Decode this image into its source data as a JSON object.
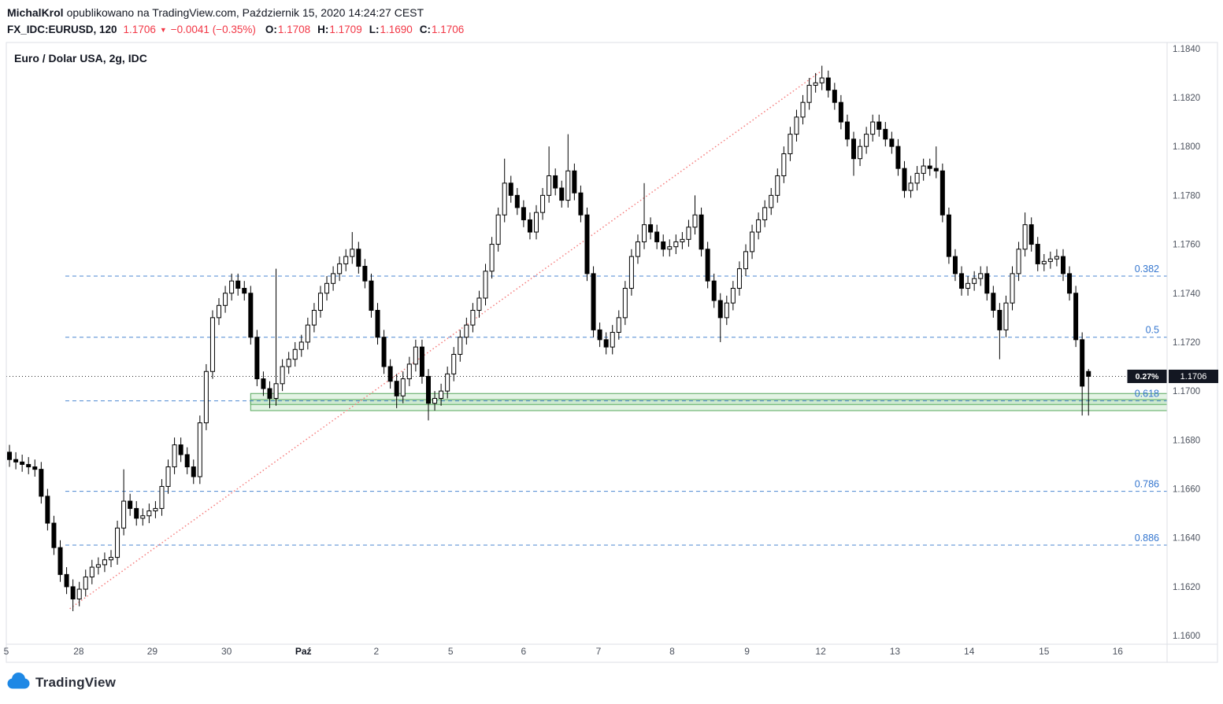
{
  "header": {
    "author": "MichalKrol",
    "published_text": "opublikowano na TradingView.com, Październik 15, 2020 14:24:27 CEST",
    "symbol": "FX_IDC:EURUSD, 120",
    "last_price": "1.1706",
    "direction_icon": "▼",
    "change": "−0.0041 (−0.35%)",
    "ohlc": {
      "o_label": "O:",
      "o": "1.1708",
      "h_label": "H:",
      "h": "1.1709",
      "l_label": "L:",
      "l": "1.1690",
      "c_label": "C:",
      "c": "1.1706"
    }
  },
  "chart": {
    "title": "Euro / Dolar USA, 2g, IDC"
  },
  "footer": {
    "brand": "TradingView"
  },
  "chart_data": {
    "type": "candlestick",
    "title": "Euro / Dolar USA, 2g, IDC",
    "symbol": "EURUSD",
    "interval": "2h",
    "ylim": [
      1.15965,
      1.18425
    ],
    "y_ticks": [
      "1.1600",
      "1.1620",
      "1.1640",
      "1.1660",
      "1.1680",
      "1.1700",
      "1.1720",
      "1.1740",
      "1.1760",
      "1.1780",
      "1.1800",
      "1.1820",
      "1.1840"
    ],
    "x_ticks": [
      {
        "label": "5",
        "idx": 0,
        "bold": false
      },
      {
        "label": "28",
        "idx": 11.4,
        "bold": false
      },
      {
        "label": "29",
        "idx": 23.0,
        "bold": false
      },
      {
        "label": "30",
        "idx": 34.7,
        "bold": false
      },
      {
        "label": "Paź",
        "idx": 46.8,
        "bold": true
      },
      {
        "label": "2",
        "idx": 58.3,
        "bold": false
      },
      {
        "label": "5",
        "idx": 70.0,
        "bold": false
      },
      {
        "label": "6",
        "idx": 81.5,
        "bold": false
      },
      {
        "label": "7",
        "idx": 93.3,
        "bold": false
      },
      {
        "label": "8",
        "idx": 104.9,
        "bold": false
      },
      {
        "label": "9",
        "idx": 116.7,
        "bold": false
      },
      {
        "label": "12",
        "idx": 128.3,
        "bold": false
      },
      {
        "label": "13",
        "idx": 140.0,
        "bold": false
      },
      {
        "label": "14",
        "idx": 151.7,
        "bold": false
      },
      {
        "label": "15",
        "idx": 163.5,
        "bold": false
      },
      {
        "label": "16",
        "idx": 175.1,
        "bold": false
      }
    ],
    "candle_style": {
      "up_fill": "#ffffff",
      "down_fill": "#000000",
      "border": "#000000",
      "wick": "#000000"
    },
    "fib_style": {
      "start_idx": 9.3,
      "line_color": "#4a86d1",
      "label_color": "#3476cf",
      "dash": "5,4"
    },
    "fib_levels": [
      {
        "label": "0.382",
        "price": 1.1747
      },
      {
        "label": "0.5",
        "price": 1.1722
      },
      {
        "label": "0.618",
        "price": 1.1696
      },
      {
        "label": "0.786",
        "price": 1.1659
      },
      {
        "label": "0.886",
        "price": 1.1637
      }
    ],
    "zone_style": {
      "fill": "rgba(129,199,132,0.22)",
      "stroke": "#56a85c"
    },
    "zones": [
      {
        "start_idx": 38.5,
        "price_top": 1.1699,
        "price_bottom": 1.16945
      },
      {
        "start_idx": 38.5,
        "price_top": 1.16965,
        "price_bottom": 1.1692
      }
    ],
    "trendline": {
      "x1_idx": 9.5,
      "price1": 1.1611,
      "x2_idx": 128,
      "price2": 1.1831,
      "color": "#f57d7d",
      "dash": "1.5,3"
    },
    "price_line": {
      "price": 1.1706,
      "percent_label": "0.27%",
      "price_label": "1.1706",
      "line_color": "#2a2a2a",
      "badge_bg": "#131722",
      "badge_fg": "#ffffff"
    },
    "candles": [
      [
        1.1675,
        1.1678,
        1.1669,
        1.1672
      ],
      [
        1.1672,
        1.1675,
        1.1668,
        1.1671
      ],
      [
        1.1671,
        1.1674,
        1.1667,
        1.167
      ],
      [
        1.167,
        1.1673,
        1.1666,
        1.1669
      ],
      [
        1.1669,
        1.1672,
        1.1665,
        1.1668
      ],
      [
        1.1668,
        1.1671,
        1.1654,
        1.1657
      ],
      [
        1.1657,
        1.166,
        1.1643,
        1.1646
      ],
      [
        1.1646,
        1.1649,
        1.1633,
        1.1636
      ],
      [
        1.1636,
        1.1639,
        1.1622,
        1.1625
      ],
      [
        1.1625,
        1.1628,
        1.1617,
        1.162
      ],
      [
        1.162,
        1.1623,
        1.161,
        1.1615
      ],
      [
        1.1615,
        1.1622,
        1.1612,
        1.1619
      ],
      [
        1.1619,
        1.1627,
        1.1616,
        1.1624
      ],
      [
        1.1624,
        1.1631,
        1.1621,
        1.1628
      ],
      [
        1.1628,
        1.1632,
        1.1625,
        1.1629
      ],
      [
        1.1629,
        1.1634,
        1.1626,
        1.1631
      ],
      [
        1.1631,
        1.1635,
        1.1628,
        1.1632
      ],
      [
        1.1632,
        1.1647,
        1.1629,
        1.1644
      ],
      [
        1.1644,
        1.1668,
        1.1641,
        1.1655
      ],
      [
        1.1655,
        1.1658,
        1.1649,
        1.1652
      ],
      [
        1.1652,
        1.1655,
        1.1645,
        1.1648
      ],
      [
        1.1648,
        1.1652,
        1.1645,
        1.1649
      ],
      [
        1.1649,
        1.1654,
        1.1646,
        1.1651
      ],
      [
        1.1651,
        1.1655,
        1.1648,
        1.1652
      ],
      [
        1.1652,
        1.1664,
        1.1649,
        1.1661
      ],
      [
        1.1661,
        1.1672,
        1.1658,
        1.1669
      ],
      [
        1.1669,
        1.1681,
        1.1666,
        1.1678
      ],
      [
        1.1678,
        1.1681,
        1.1671,
        1.1674
      ],
      [
        1.1674,
        1.1677,
        1.1666,
        1.1669
      ],
      [
        1.1669,
        1.1672,
        1.1662,
        1.1665
      ],
      [
        1.1665,
        1.169,
        1.1662,
        1.1687
      ],
      [
        1.1687,
        1.1711,
        1.1684,
        1.1708
      ],
      [
        1.1708,
        1.1733,
        1.1705,
        1.173
      ],
      [
        1.173,
        1.1738,
        1.1727,
        1.1735
      ],
      [
        1.1735,
        1.1743,
        1.1732,
        1.174
      ],
      [
        1.174,
        1.1748,
        1.1737,
        1.1745
      ],
      [
        1.1745,
        1.1748,
        1.1739,
        1.1742
      ],
      [
        1.1742,
        1.1745,
        1.1737,
        1.174
      ],
      [
        1.174,
        1.1743,
        1.1719,
        1.1722
      ],
      [
        1.1722,
        1.1725,
        1.1702,
        1.1705
      ],
      [
        1.1705,
        1.1708,
        1.1698,
        1.1701
      ],
      [
        1.1701,
        1.1704,
        1.1693,
        1.1697
      ],
      [
        1.1697,
        1.175,
        1.1694,
        1.1703
      ],
      [
        1.1703,
        1.1713,
        1.17,
        1.171
      ],
      [
        1.171,
        1.1716,
        1.1707,
        1.1713
      ],
      [
        1.1713,
        1.172,
        1.171,
        1.1717
      ],
      [
        1.1717,
        1.1723,
        1.1714,
        1.172
      ],
      [
        1.172,
        1.173,
        1.1717,
        1.1727
      ],
      [
        1.1727,
        1.1736,
        1.1724,
        1.1733
      ],
      [
        1.1733,
        1.1743,
        1.173,
        1.174
      ],
      [
        1.174,
        1.1747,
        1.1737,
        1.1744
      ],
      [
        1.1744,
        1.1751,
        1.1741,
        1.1748
      ],
      [
        1.1748,
        1.1755,
        1.1745,
        1.1752
      ],
      [
        1.1752,
        1.1758,
        1.1749,
        1.1755
      ],
      [
        1.1755,
        1.1765,
        1.1752,
        1.1758
      ],
      [
        1.1758,
        1.1761,
        1.1748,
        1.1751
      ],
      [
        1.1751,
        1.1754,
        1.1742,
        1.1745
      ],
      [
        1.1745,
        1.1748,
        1.173,
        1.1733
      ],
      [
        1.1733,
        1.1736,
        1.1719,
        1.1722
      ],
      [
        1.1722,
        1.1725,
        1.1707,
        1.171
      ],
      [
        1.171,
        1.1713,
        1.1701,
        1.1704
      ],
      [
        1.1704,
        1.1707,
        1.1693,
        1.1698
      ],
      [
        1.1698,
        1.1708,
        1.1695,
        1.1705
      ],
      [
        1.1705,
        1.1714,
        1.1702,
        1.1711
      ],
      [
        1.1711,
        1.1721,
        1.1708,
        1.1718
      ],
      [
        1.1718,
        1.1721,
        1.1703,
        1.1706
      ],
      [
        1.1706,
        1.1709,
        1.1688,
        1.1695
      ],
      [
        1.1695,
        1.17,
        1.1692,
        1.1697
      ],
      [
        1.1697,
        1.1703,
        1.1694,
        1.17
      ],
      [
        1.17,
        1.171,
        1.1697,
        1.1707
      ],
      [
        1.1707,
        1.1718,
        1.1704,
        1.1715
      ],
      [
        1.1715,
        1.1725,
        1.1712,
        1.1722
      ],
      [
        1.1722,
        1.173,
        1.1719,
        1.1727
      ],
      [
        1.1727,
        1.1736,
        1.1724,
        1.1733
      ],
      [
        1.1733,
        1.1741,
        1.173,
        1.1738
      ],
      [
        1.1738,
        1.1752,
        1.1735,
        1.1749
      ],
      [
        1.1749,
        1.1763,
        1.1746,
        1.176
      ],
      [
        1.176,
        1.1775,
        1.1757,
        1.1772
      ],
      [
        1.1772,
        1.1795,
        1.1769,
        1.1785
      ],
      [
        1.1785,
        1.1788,
        1.1777,
        1.178
      ],
      [
        1.178,
        1.1783,
        1.1772,
        1.1775
      ],
      [
        1.1775,
        1.1778,
        1.1767,
        1.177
      ],
      [
        1.177,
        1.1773,
        1.1762,
        1.1765
      ],
      [
        1.1765,
        1.1776,
        1.1762,
        1.1773
      ],
      [
        1.1773,
        1.1783,
        1.177,
        1.178
      ],
      [
        1.178,
        1.18,
        1.1777,
        1.1788
      ],
      [
        1.1788,
        1.1791,
        1.178,
        1.1783
      ],
      [
        1.1783,
        1.1786,
        1.1775,
        1.1778
      ],
      [
        1.1778,
        1.1805,
        1.1775,
        1.179
      ],
      [
        1.179,
        1.1793,
        1.1778,
        1.1781
      ],
      [
        1.1781,
        1.1784,
        1.1769,
        1.1772
      ],
      [
        1.1772,
        1.1775,
        1.1745,
        1.1748
      ],
      [
        1.1748,
        1.1751,
        1.1722,
        1.1725
      ],
      [
        1.1725,
        1.1728,
        1.1718,
        1.1721
      ],
      [
        1.1721,
        1.1724,
        1.1715,
        1.1718
      ],
      [
        1.1718,
        1.1727,
        1.1715,
        1.1724
      ],
      [
        1.1724,
        1.1733,
        1.1721,
        1.173
      ],
      [
        1.173,
        1.1745,
        1.1727,
        1.1742
      ],
      [
        1.1742,
        1.1758,
        1.1739,
        1.1755
      ],
      [
        1.1755,
        1.1764,
        1.1752,
        1.1761
      ],
      [
        1.1761,
        1.1785,
        1.1758,
        1.1768
      ],
      [
        1.1768,
        1.1771,
        1.1762,
        1.1765
      ],
      [
        1.1765,
        1.1768,
        1.1758,
        1.1761
      ],
      [
        1.1761,
        1.1764,
        1.1755,
        1.1758
      ],
      [
        1.1758,
        1.1762,
        1.1755,
        1.1759
      ],
      [
        1.1759,
        1.1764,
        1.1756,
        1.1761
      ],
      [
        1.1761,
        1.1765,
        1.1758,
        1.1762
      ],
      [
        1.1762,
        1.177,
        1.1759,
        1.1767
      ],
      [
        1.1767,
        1.178,
        1.1764,
        1.1772
      ],
      [
        1.1772,
        1.1775,
        1.1755,
        1.1758
      ],
      [
        1.1758,
        1.1761,
        1.1742,
        1.1745
      ],
      [
        1.1745,
        1.1748,
        1.1734,
        1.1737
      ],
      [
        1.1737,
        1.174,
        1.172,
        1.173
      ],
      [
        1.173,
        1.1739,
        1.1727,
        1.1736
      ],
      [
        1.1736,
        1.1745,
        1.1733,
        1.1742
      ],
      [
        1.1742,
        1.1753,
        1.1739,
        1.175
      ],
      [
        1.175,
        1.176,
        1.1747,
        1.1757
      ],
      [
        1.1757,
        1.1768,
        1.1754,
        1.1765
      ],
      [
        1.1765,
        1.1773,
        1.1762,
        1.177
      ],
      [
        1.177,
        1.1778,
        1.1767,
        1.1775
      ],
      [
        1.1775,
        1.1783,
        1.1772,
        1.178
      ],
      [
        1.178,
        1.1791,
        1.1777,
        1.1788
      ],
      [
        1.1788,
        1.18,
        1.1785,
        1.1797
      ],
      [
        1.1797,
        1.1808,
        1.1794,
        1.1805
      ],
      [
        1.1805,
        1.1815,
        1.1802,
        1.1812
      ],
      [
        1.1812,
        1.1821,
        1.1809,
        1.1818
      ],
      [
        1.1818,
        1.1828,
        1.1815,
        1.1825
      ],
      [
        1.1825,
        1.183,
        1.1822,
        1.1826
      ],
      [
        1.1826,
        1.1833,
        1.1823,
        1.1828
      ],
      [
        1.1828,
        1.1831,
        1.182,
        1.1823
      ],
      [
        1.1823,
        1.1826,
        1.1815,
        1.1818
      ],
      [
        1.1818,
        1.1821,
        1.1807,
        1.181
      ],
      [
        1.181,
        1.1813,
        1.18,
        1.1803
      ],
      [
        1.1803,
        1.1806,
        1.1788,
        1.1795
      ],
      [
        1.1795,
        1.1803,
        1.1792,
        1.18
      ],
      [
        1.18,
        1.1808,
        1.1797,
        1.1805
      ],
      [
        1.1805,
        1.1813,
        1.1802,
        1.181
      ],
      [
        1.181,
        1.1813,
        1.1804,
        1.1807
      ],
      [
        1.1807,
        1.181,
        1.18,
        1.1803
      ],
      [
        1.1803,
        1.1806,
        1.1797,
        1.18
      ],
      [
        1.18,
        1.1803,
        1.1788,
        1.1791
      ],
      [
        1.1791,
        1.1794,
        1.1779,
        1.1782
      ],
      [
        1.1782,
        1.1788,
        1.1779,
        1.1785
      ],
      [
        1.1785,
        1.1792,
        1.1782,
        1.1789
      ],
      [
        1.1789,
        1.1795,
        1.1786,
        1.1792
      ],
      [
        1.1792,
        1.1795,
        1.1788,
        1.1791
      ],
      [
        1.1791,
        1.18,
        1.1787,
        1.179
      ],
      [
        1.179,
        1.1793,
        1.1769,
        1.1772
      ],
      [
        1.1772,
        1.1775,
        1.1752,
        1.1755
      ],
      [
        1.1755,
        1.1758,
        1.1745,
        1.1748
      ],
      [
        1.1748,
        1.1751,
        1.1739,
        1.1742
      ],
      [
        1.1742,
        1.1747,
        1.1739,
        1.1744
      ],
      [
        1.1744,
        1.1749,
        1.1741,
        1.1746
      ],
      [
        1.1746,
        1.1751,
        1.1743,
        1.1748
      ],
      [
        1.1748,
        1.1751,
        1.1737,
        1.174
      ],
      [
        1.174,
        1.1743,
        1.173,
        1.1733
      ],
      [
        1.1733,
        1.1736,
        1.1713,
        1.1725
      ],
      [
        1.1725,
        1.1739,
        1.1722,
        1.1736
      ],
      [
        1.1736,
        1.1751,
        1.1733,
        1.1748
      ],
      [
        1.1748,
        1.1761,
        1.1745,
        1.1758
      ],
      [
        1.1758,
        1.1773,
        1.1755,
        1.1768
      ],
      [
        1.1768,
        1.1771,
        1.1757,
        1.176
      ],
      [
        1.176,
        1.1763,
        1.1749,
        1.1752
      ],
      [
        1.1752,
        1.1756,
        1.1749,
        1.1753
      ],
      [
        1.1753,
        1.1757,
        1.175,
        1.1754
      ],
      [
        1.1754,
        1.1758,
        1.1751,
        1.1755
      ],
      [
        1.1755,
        1.1758,
        1.1745,
        1.1748
      ],
      [
        1.1748,
        1.1751,
        1.1737,
        1.174
      ],
      [
        1.174,
        1.1743,
        1.1718,
        1.1721
      ],
      [
        1.1721,
        1.1724,
        1.169,
        1.1702
      ],
      [
        1.1708,
        1.1709,
        1.169,
        1.1706
      ]
    ]
  }
}
